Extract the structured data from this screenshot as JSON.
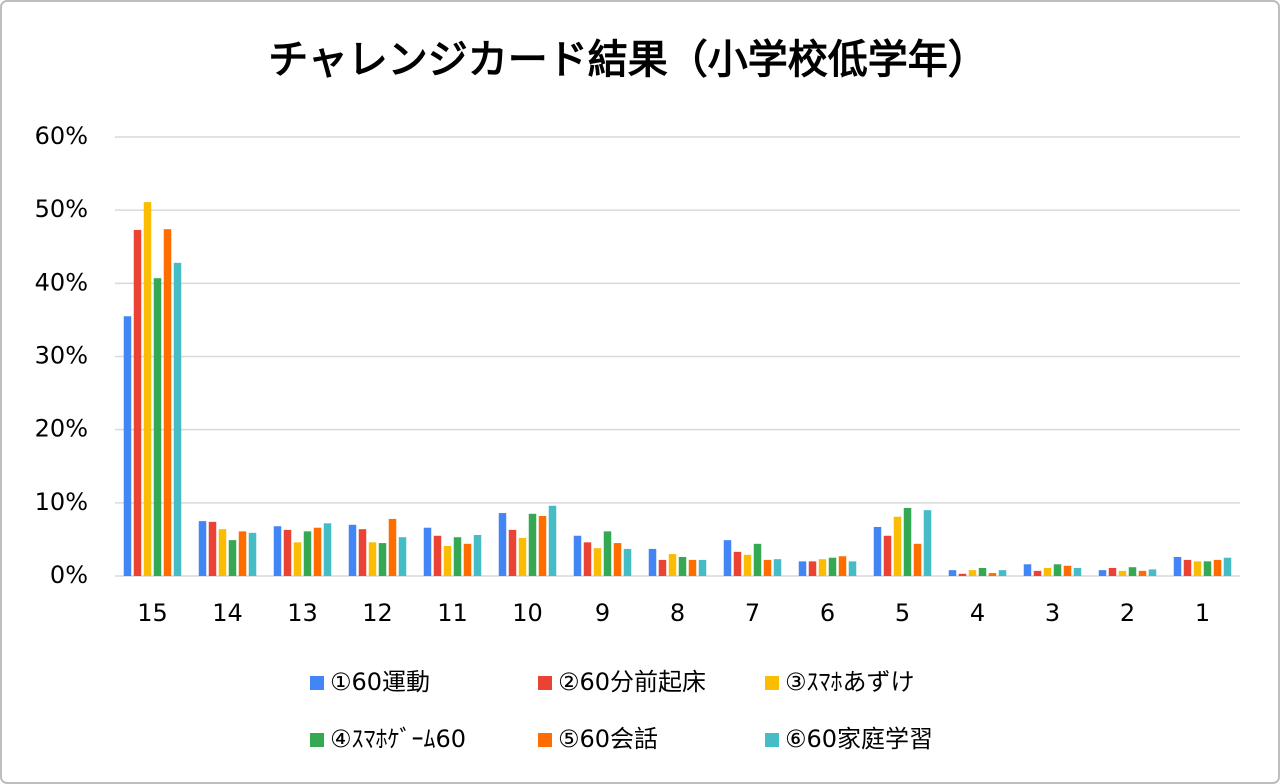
{
  "chart_data": {
    "type": "bar",
    "title": "チャレンジカード結果（小学校低学年）",
    "categories": [
      "15",
      "14",
      "13",
      "12",
      "11",
      "10",
      "9",
      "8",
      "7",
      "6",
      "5",
      "4",
      "3",
      "2",
      "1"
    ],
    "series": [
      {
        "name": "①60運動",
        "color": "#4285f4",
        "values": [
          35.5,
          7.5,
          6.8,
          7.0,
          6.6,
          8.6,
          5.5,
          3.7,
          4.9,
          2.0,
          6.7,
          0.8,
          1.6,
          0.8,
          2.6
        ]
      },
      {
        "name": "②60分前起床",
        "color": "#ea4335",
        "values": [
          47.3,
          7.4,
          6.3,
          6.4,
          5.5,
          6.3,
          4.6,
          2.2,
          3.3,
          2.0,
          5.5,
          0.3,
          0.7,
          1.1,
          2.2
        ]
      },
      {
        "name": "③ｽﾏﾎあずけ",
        "color": "#fbbc04",
        "values": [
          51.1,
          6.4,
          4.6,
          4.6,
          4.1,
          5.2,
          3.8,
          3.0,
          2.9,
          2.3,
          8.1,
          0.8,
          1.1,
          0.7,
          2.0
        ]
      },
      {
        "name": "④ｽﾏﾎｹﾞｰﾑ60",
        "color": "#34a853",
        "values": [
          40.7,
          4.9,
          6.1,
          4.5,
          5.3,
          8.5,
          6.1,
          2.6,
          4.4,
          2.5,
          9.3,
          1.1,
          1.6,
          1.2,
          2.0
        ]
      },
      {
        "name": "⑤60会話",
        "color": "#ff6d01",
        "values": [
          47.4,
          6.1,
          6.6,
          7.8,
          4.4,
          8.2,
          4.5,
          2.2,
          2.2,
          2.7,
          4.4,
          0.4,
          1.4,
          0.7,
          2.2
        ]
      },
      {
        "name": "⑥60家庭学習",
        "color": "#46bdc6",
        "values": [
          42.8,
          5.9,
          7.2,
          5.3,
          5.6,
          9.6,
          3.7,
          2.2,
          2.3,
          2.0,
          9.0,
          0.8,
          1.1,
          0.9,
          2.5
        ]
      }
    ],
    "ylim": [
      0,
      60
    ],
    "yticks": [
      {
        "value": 0,
        "label": "0%"
      },
      {
        "value": 10,
        "label": "10%"
      },
      {
        "value": 20,
        "label": "20%"
      },
      {
        "value": 30,
        "label": "30%"
      },
      {
        "value": 40,
        "label": "40%"
      },
      {
        "value": 50,
        "label": "50%"
      },
      {
        "value": 60,
        "label": "60%"
      }
    ],
    "grid": true
  }
}
